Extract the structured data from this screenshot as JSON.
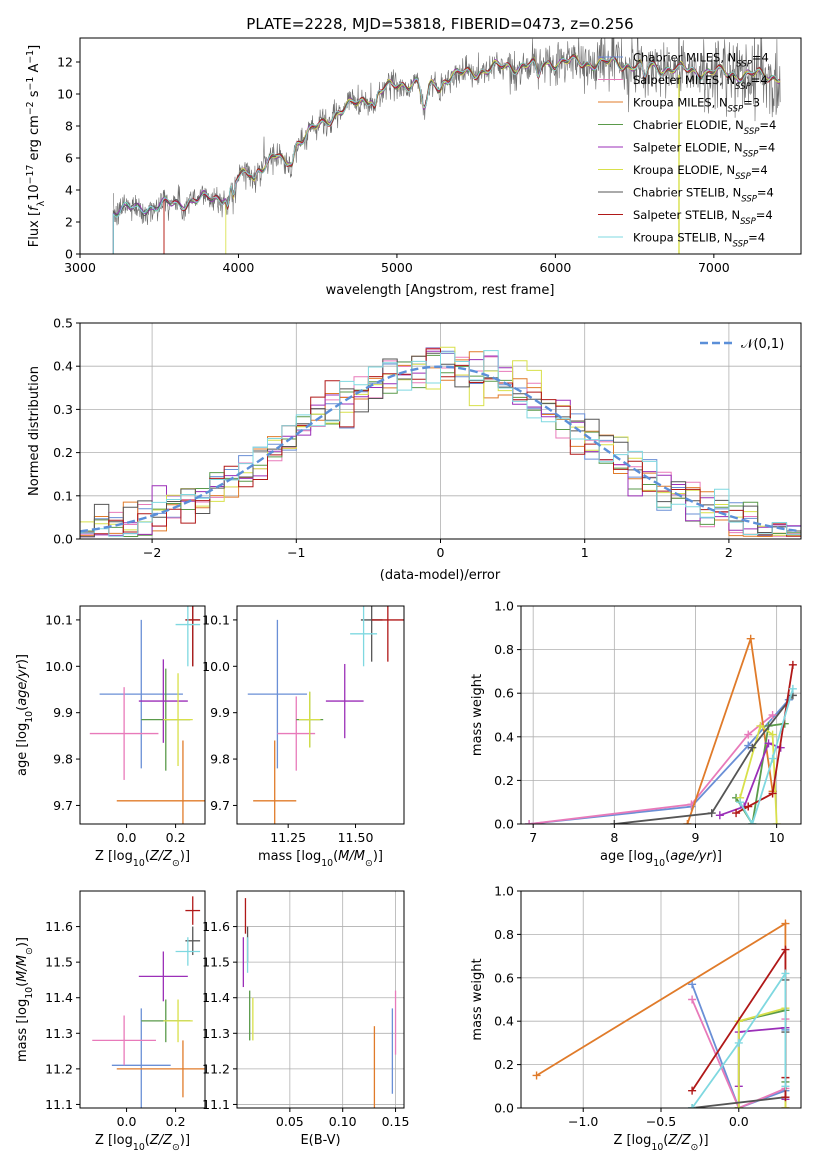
{
  "figure_title": "PLATE=2228, MJD=53818, FIBERID=0473, z=0.256",
  "colors": {
    "Chabrier MILES": "#6a8fd6",
    "Salpeter MILES": "#e87aba",
    "Kroupa MILES": "#e07b2a",
    "Chabrier ELODIE": "#5a9a4a",
    "Salpeter ELODIE": "#9b2fb8",
    "Kroupa ELODIE": "#d8e04a",
    "Chabrier STELIB": "#555555",
    "Salpeter STELIB": "#b01818",
    "Kroupa STELIB": "#7fd8e0"
  },
  "chart_data": [
    {
      "id": "spectrum",
      "type": "line",
      "title": "PLATE=2228, MJD=53818, FIBERID=0473, z=0.256",
      "xlabel": "wavelength [Angstrom, rest frame]",
      "ylabel": "Flux [f_λ 10^-17 erg cm^-2 s^-1 A^-1]",
      "xlim": [
        3000,
        7550
      ],
      "ylim": [
        0,
        13.5
      ],
      "xticks": [
        3000,
        4000,
        5000,
        6000,
        7000
      ],
      "yticks": [
        0,
        2,
        4,
        6,
        8,
        10,
        12
      ],
      "legend_position": "top-right",
      "legend": [
        {
          "name": "Chabrier MILES, N_SSP=4",
          "text": "Chabrier MILES, N",
          "sub": "SSP",
          "tail": "=4"
        },
        {
          "name": "Salpeter MILES, N_SSP=4",
          "text": "Salpeter MILES, N",
          "sub": "SSP",
          "tail": "=4"
        },
        {
          "name": "Kroupa MILES, N_SSP=3",
          "text": "Kroupa MILES, N",
          "sub": "SSP",
          "tail": "=3"
        },
        {
          "name": "Chabrier ELODIE, N_SSP=4",
          "text": "Chabrier ELODIE, N",
          "sub": "SSP",
          "tail": "=4"
        },
        {
          "name": "Salpeter ELODIE, N_SSP=4",
          "text": "Salpeter ELODIE, N",
          "sub": "SSP",
          "tail": "=4"
        },
        {
          "name": "Kroupa ELODIE, N_SSP=4",
          "text": "Kroupa ELODIE, N",
          "sub": "SSP",
          "tail": "=4"
        },
        {
          "name": "Chabrier STELIB, N_SSP=4",
          "text": "Chabrier STELIB, N",
          "sub": "SSP",
          "tail": "=4"
        },
        {
          "name": "Salpeter STELIB, N_SSP=4",
          "text": "Salpeter STELIB, N",
          "sub": "SSP",
          "tail": "=4"
        },
        {
          "name": "Kroupa STELIB, N_SSP=4",
          "text": "Kroupa STELIB, N",
          "sub": "SSP",
          "tail": "=4"
        }
      ],
      "continuum": [
        [
          3210,
          2.7
        ],
        [
          3500,
          3.0
        ],
        [
          3900,
          3.6
        ],
        [
          4000,
          4.7
        ],
        [
          4200,
          5.8
        ],
        [
          4400,
          7.2
        ],
        [
          4600,
          8.7
        ],
        [
          4800,
          9.7
        ],
        [
          5000,
          10.6
        ],
        [
          5200,
          10.8
        ],
        [
          5400,
          11.2
        ],
        [
          5600,
          11.6
        ],
        [
          5800,
          11.8
        ],
        [
          6000,
          12.0
        ],
        [
          6400,
          11.9
        ],
        [
          6800,
          11.5
        ],
        [
          7200,
          11.2
        ],
        [
          7420,
          11.1
        ]
      ],
      "model_start": {
        "Kroupa STELIB": 3210,
        "Salpeter MILES": 3530,
        "Kroupa MILES": 3530,
        "Kroupa ELODIE": 3920,
        "Chabrier MILES": 3530,
        "Salpeter STELIB": 3530
      }
    },
    {
      "id": "residual_histogram",
      "type": "histogram",
      "xlabel": "(data-model)/error",
      "ylabel": "Normed distribution",
      "xlim": [
        -2.5,
        2.5
      ],
      "ylim": [
        0,
        0.5
      ],
      "xticks": [
        -2,
        -1,
        0,
        1,
        2
      ],
      "yticks": [
        0.0,
        0.1,
        0.2,
        0.3,
        0.4,
        0.5
      ],
      "grid": true,
      "bin_width": 0.1,
      "legend_position": "top-right",
      "reference_curve": {
        "label": "𝒩(0,1)",
        "mean": 0,
        "sigma": 1,
        "color": "#5b8fd8"
      }
    },
    {
      "id": "age_vs_Z",
      "type": "errorbar",
      "xlabel": "Z [log10(Z/Z☉)]",
      "ylabel": "age [log10(age/yr)]",
      "xlim": [
        -0.19,
        0.32
      ],
      "ylim": [
        9.66,
        10.13
      ],
      "xticks": [
        0.0,
        0.2
      ],
      "yticks": [
        9.7,
        9.8,
        9.9,
        10.0,
        10.1
      ],
      "points": [
        {
          "series": "Chabrier MILES",
          "x": 0.06,
          "y": 9.94,
          "xerr": 0.17,
          "yerr": 0.16
        },
        {
          "series": "Salpeter MILES",
          "x": -0.01,
          "y": 9.855,
          "xerr": 0.14,
          "yerr": 0.1
        },
        {
          "series": "Kroupa MILES",
          "x": 0.23,
          "y": 9.71,
          "xerr": 0.27,
          "yerr": 0.13
        },
        {
          "series": "Chabrier ELODIE",
          "x": 0.16,
          "y": 9.885,
          "xerr": 0.1,
          "yerr": 0.11
        },
        {
          "series": "Salpeter ELODIE",
          "x": 0.15,
          "y": 9.925,
          "xerr": 0.1,
          "yerr": 0.09
        },
        {
          "series": "Kroupa ELODIE",
          "x": 0.21,
          "y": 9.885,
          "xerr": 0.06,
          "yerr": 0.1
        },
        {
          "series": "Chabrier STELIB",
          "x": 0.27,
          "y": 10.1,
          "xerr": 0.03,
          "yerr": 0.1
        },
        {
          "series": "Salpeter STELIB",
          "x": 0.27,
          "y": 10.1,
          "xerr": 0.03,
          "yerr": 0.1
        },
        {
          "series": "Kroupa STELIB",
          "x": 0.25,
          "y": 10.09,
          "xerr": 0.05,
          "yerr": 0.09
        }
      ]
    },
    {
      "id": "age_vs_mass",
      "type": "errorbar",
      "xlabel": "mass [log10(M/M☉)]",
      "ylabel": "",
      "xlim": [
        11.06,
        11.68
      ],
      "ylim": [
        9.66,
        10.13
      ],
      "xticks": [
        11.25,
        11.5
      ],
      "yticks": [
        9.7,
        9.8,
        9.9,
        10.0,
        10.1
      ],
      "points": [
        {
          "series": "Chabrier MILES",
          "x": 11.21,
          "y": 9.94,
          "xerr": 0.11,
          "yerr": 0.16
        },
        {
          "series": "Salpeter MILES",
          "x": 11.28,
          "y": 9.855,
          "xerr": 0.07,
          "yerr": 0.08
        },
        {
          "series": "Kroupa MILES",
          "x": 11.2,
          "y": 9.71,
          "xerr": 0.08,
          "yerr": 0.13
        },
        {
          "series": "Chabrier ELODIE",
          "x": 11.33,
          "y": 9.885,
          "xerr": 0.05,
          "yerr": 0.06
        },
        {
          "series": "Salpeter ELODIE",
          "x": 11.46,
          "y": 9.925,
          "xerr": 0.07,
          "yerr": 0.08
        },
        {
          "series": "Kroupa ELODIE",
          "x": 11.33,
          "y": 9.885,
          "xerr": 0.04,
          "yerr": 0.06
        },
        {
          "series": "Chabrier STELIB",
          "x": 11.56,
          "y": 10.1,
          "xerr": 0.04,
          "yerr": 0.09
        },
        {
          "series": "Salpeter STELIB",
          "x": 11.62,
          "y": 10.1,
          "xerr": 0.06,
          "yerr": 0.09
        },
        {
          "series": "Kroupa STELIB",
          "x": 11.53,
          "y": 10.07,
          "xerr": 0.05,
          "yerr": 0.07
        }
      ]
    },
    {
      "id": "mass_weight_vs_age",
      "type": "line",
      "xlabel": "age [log10(age/yr)]",
      "ylabel": "mass weight",
      "xlim": [
        6.85,
        10.3
      ],
      "ylim": [
        0,
        1
      ],
      "xticks": [
        7,
        8,
        9,
        10
      ],
      "yticks": [
        0.0,
        0.2,
        0.4,
        0.6,
        0.8,
        1.0
      ],
      "grid": true,
      "series": [
        {
          "name": "Chabrier MILES",
          "x": [
            6.95,
            8.95,
            9.65,
            10.15
          ],
          "y": [
            0.0,
            0.08,
            0.36,
            0.57
          ]
        },
        {
          "name": "Salpeter MILES",
          "x": [
            6.95,
            8.95,
            9.65,
            9.95
          ],
          "y": [
            0.0,
            0.09,
            0.41,
            0.5
          ]
        },
        {
          "name": "Kroupa MILES",
          "x": [
            8.9,
            9.68,
            9.95
          ],
          "y": [
            0.0,
            0.85,
            0.15
          ]
        },
        {
          "name": "Chabrier ELODIE",
          "x": [
            9.5,
            9.7,
            9.9,
            10.1
          ],
          "y": [
            0.12,
            0.0,
            0.45,
            0.46
          ]
        },
        {
          "name": "Salpeter ELODIE",
          "x": [
            9.3,
            9.6,
            9.9,
            10.05
          ],
          "y": [
            0.04,
            0.08,
            0.37,
            0.35
          ]
        },
        {
          "name": "Kroupa ELODIE",
          "x": [
            9.55,
            9.8,
            9.95,
            10.0
          ],
          "y": [
            0.12,
            0.45,
            0.41,
            0.0
          ]
        },
        {
          "name": "Chabrier STELIB",
          "x": [
            8.0,
            9.2,
            9.7,
            10.2
          ],
          "y": [
            0.0,
            0.05,
            0.35,
            0.59
          ]
        },
        {
          "name": "Salpeter STELIB",
          "x": [
            9.5,
            9.65,
            9.95,
            10.2
          ],
          "y": [
            0.05,
            0.08,
            0.14,
            0.73
          ]
        },
        {
          "name": "Kroupa STELIB",
          "x": [
            9.55,
            9.7,
            9.95,
            10.2
          ],
          "y": [
            0.1,
            0.0,
            0.3,
            0.62
          ]
        }
      ]
    },
    {
      "id": "mass_vs_Z",
      "type": "errorbar",
      "xlabel": "Z [log10(Z/Z☉)]",
      "ylabel": "mass [log10(M/M☉)]",
      "xlim": [
        -0.19,
        0.32
      ],
      "ylim": [
        11.09,
        11.7
      ],
      "xticks": [
        0.0,
        0.2
      ],
      "yticks": [
        11.1,
        11.2,
        11.3,
        11.4,
        11.5,
        11.6
      ],
      "points": [
        {
          "series": "Chabrier MILES",
          "x": 0.06,
          "y": 11.21,
          "xerr": 0.12,
          "yerr": 0.16
        },
        {
          "series": "Salpeter MILES",
          "x": -0.01,
          "y": 11.28,
          "xerr": 0.13,
          "yerr": 0.07
        },
        {
          "series": "Kroupa MILES",
          "x": 0.23,
          "y": 11.2,
          "xerr": 0.27,
          "yerr": 0.08
        },
        {
          "series": "Chabrier ELODIE",
          "x": 0.16,
          "y": 11.335,
          "xerr": 0.1,
          "yerr": 0.06
        },
        {
          "series": "Salpeter ELODIE",
          "x": 0.15,
          "y": 11.46,
          "xerr": 0.1,
          "yerr": 0.07
        },
        {
          "series": "Kroupa ELODIE",
          "x": 0.21,
          "y": 11.335,
          "xerr": 0.06,
          "yerr": 0.06
        },
        {
          "series": "Chabrier STELIB",
          "x": 0.27,
          "y": 11.56,
          "xerr": 0.03,
          "yerr": 0.04
        },
        {
          "series": "Salpeter STELIB",
          "x": 0.27,
          "y": 11.645,
          "xerr": 0.03,
          "yerr": 0.04
        },
        {
          "series": "Kroupa STELIB",
          "x": 0.25,
          "y": 11.53,
          "xerr": 0.05,
          "yerr": 0.04
        }
      ]
    },
    {
      "id": "mass_vs_EBV",
      "type": "errorbar",
      "xlabel": "E(B-V)",
      "ylabel": "",
      "xlim": [
        0.0,
        0.158
      ],
      "ylim": [
        11.09,
        11.7
      ],
      "xticks": [
        0.05,
        0.1,
        0.15
      ],
      "yticks": [
        11.1,
        11.2,
        11.3,
        11.4,
        11.5,
        11.6
      ],
      "grid": true,
      "points": [
        {
          "series": "Chabrier MILES",
          "x": 0.147,
          "y": 11.25,
          "xerr": 0.0,
          "yerr": 0.12
        },
        {
          "series": "Salpeter MILES",
          "x": 0.15,
          "y": 11.33,
          "xerr": 0.0,
          "yerr": 0.09
        },
        {
          "series": "Kroupa MILES",
          "x": 0.13,
          "y": 11.2,
          "xerr": 0.0,
          "yerr": 0.12
        },
        {
          "series": "Chabrier ELODIE",
          "x": 0.012,
          "y": 11.35,
          "xerr": 0.0,
          "yerr": 0.07
        },
        {
          "series": "Salpeter ELODIE",
          "x": 0.006,
          "y": 11.5,
          "xerr": 0.0,
          "yerr": 0.07
        },
        {
          "series": "Kroupa ELODIE",
          "x": 0.015,
          "y": 11.34,
          "xerr": 0.0,
          "yerr": 0.06
        },
        {
          "series": "Chabrier STELIB",
          "x": 0.01,
          "y": 11.55,
          "xerr": 0.0,
          "yerr": 0.05
        },
        {
          "series": "Salpeter STELIB",
          "x": 0.008,
          "y": 11.63,
          "xerr": 0.0,
          "yerr": 0.05
        },
        {
          "series": "Kroupa STELIB",
          "x": 0.01,
          "y": 11.52,
          "xerr": 0.0,
          "yerr": 0.05
        }
      ]
    },
    {
      "id": "mass_weight_vs_Z",
      "type": "line",
      "xlabel": "Z [log10(Z/Z☉)]",
      "ylabel": "mass weight",
      "xlim": [
        -1.4,
        0.4
      ],
      "ylim": [
        0,
        1
      ],
      "xticks": [
        -1.0,
        -0.5,
        0.0
      ],
      "yticks": [
        0.0,
        0.2,
        0.4,
        0.6,
        0.8,
        1.0
      ],
      "grid": true,
      "series": [
        {
          "name": "Chabrier MILES",
          "x": [
            -0.3,
            0.0,
            0.3,
            0.3
          ],
          "y": [
            0.57,
            0.0,
            0.08,
            0.36
          ]
        },
        {
          "name": "Salpeter MILES",
          "x": [
            -0.3,
            0.0,
            0.3,
            0.3
          ],
          "y": [
            0.5,
            0.0,
            0.09,
            0.41
          ]
        },
        {
          "name": "Kroupa MILES",
          "x": [
            -1.3,
            0.3,
            0.3
          ],
          "y": [
            0.15,
            0.85,
            0.0
          ]
        },
        {
          "name": "Chabrier ELODIE",
          "x": [
            0.0,
            0.0,
            0.3,
            0.3
          ],
          "y": [
            0.0,
            0.4,
            0.45,
            0.12
          ]
        },
        {
          "name": "Salpeter ELODIE",
          "x": [
            0.0,
            0.0,
            0.3,
            0.3
          ],
          "y": [
            0.1,
            0.35,
            0.37,
            0.04
          ]
        },
        {
          "name": "Kroupa ELODIE",
          "x": [
            0.0,
            0.0,
            0.3,
            0.3
          ],
          "y": [
            0.0,
            0.4,
            0.46,
            0.0
          ]
        },
        {
          "name": "Chabrier STELIB",
          "x": [
            -0.3,
            0.3,
            0.3,
            0.3
          ],
          "y": [
            0.0,
            0.05,
            0.35,
            0.59
          ]
        },
        {
          "name": "Salpeter STELIB",
          "x": [
            -0.3,
            0.3,
            0.3,
            0.3
          ],
          "y": [
            0.08,
            0.73,
            0.14,
            0.05
          ]
        },
        {
          "name": "Kroupa STELIB",
          "x": [
            -0.3,
            0.0,
            0.3,
            0.3
          ],
          "y": [
            0.0,
            0.3,
            0.62,
            0.1
          ]
        }
      ]
    }
  ]
}
